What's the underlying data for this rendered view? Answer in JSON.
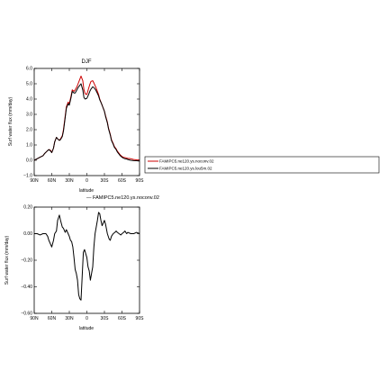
{
  "chart_data": [
    {
      "type": "line",
      "title": "DJF",
      "xlabel": "latitude",
      "ylabel": "Surf water flux (mm/day)",
      "xlim": [
        90,
        -90
      ],
      "ylim": [
        -1.0,
        6.0
      ],
      "x_ticks": [
        90,
        60,
        30,
        0,
        -30,
        -60,
        -90
      ],
      "x_tick_labels": [
        "90N",
        "60N",
        "30N",
        "0",
        "30S",
        "60S",
        "90S"
      ],
      "y_ticks": [
        -1.0,
        0.0,
        1.0,
        2.0,
        3.0,
        4.0,
        5.0,
        6.0
      ],
      "y_tick_labels": [
        "−1.0",
        "0.0",
        "1.0",
        "2.0",
        "3.0",
        "4.0",
        "5.0",
        "6.0"
      ],
      "legend_position": "right, outside plot",
      "series": [
        {
          "name": "FAMIPC5.ne120.ys.noconv.02",
          "color": "#cc0000",
          "x": [
            90,
            85,
            80,
            75,
            72,
            68,
            65,
            62,
            60,
            57,
            55,
            52,
            50,
            47,
            45,
            42,
            40,
            37,
            35,
            32,
            30,
            27,
            25,
            22,
            20,
            17,
            15,
            12,
            10,
            7,
            5,
            3,
            0,
            -3,
            -5,
            -7,
            -10,
            -12,
            -15,
            -17,
            -20,
            -22,
            -25,
            -27,
            -30,
            -32,
            -35,
            -37,
            -40,
            -42,
            -45,
            -47,
            -50,
            -52,
            -55,
            -57,
            -60,
            -62,
            -65,
            -68,
            -70,
            -72,
            -75,
            -80,
            -85,
            -90
          ],
          "y": [
            0.0,
            0.1,
            0.2,
            0.3,
            0.45,
            0.6,
            0.7,
            0.65,
            0.5,
            0.8,
            1.2,
            1.5,
            1.4,
            1.3,
            1.4,
            1.6,
            2.0,
            2.9,
            3.5,
            3.8,
            3.7,
            4.2,
            4.6,
            4.5,
            4.6,
            4.8,
            5.0,
            5.3,
            5.5,
            5.2,
            4.6,
            4.35,
            4.3,
            4.7,
            4.95,
            5.15,
            5.2,
            5.05,
            4.8,
            4.6,
            4.3,
            4.0,
            3.7,
            3.5,
            3.2,
            2.9,
            2.5,
            2.1,
            1.7,
            1.35,
            1.1,
            0.9,
            0.75,
            0.6,
            0.45,
            0.35,
            0.25,
            0.2,
            0.18,
            0.15,
            0.12,
            0.12,
            0.1,
            0.05,
            0.03,
            0.02
          ]
        },
        {
          "name": "FAMIPC5.ne120.ys.lou5m.02",
          "color": "#000000",
          "x": [
            90,
            85,
            80,
            75,
            72,
            68,
            65,
            62,
            60,
            57,
            55,
            52,
            50,
            47,
            45,
            42,
            40,
            37,
            35,
            32,
            30,
            27,
            25,
            22,
            20,
            17,
            15,
            12,
            10,
            7,
            5,
            3,
            0,
            -3,
            -5,
            -7,
            -10,
            -12,
            -15,
            -17,
            -20,
            -22,
            -25,
            -27,
            -30,
            -32,
            -35,
            -37,
            -40,
            -42,
            -45,
            -47,
            -50,
            -52,
            -55,
            -57,
            -60,
            -62,
            -65,
            -68,
            -70,
            -72,
            -75,
            -80,
            -85,
            -90
          ],
          "y": [
            0.0,
            0.1,
            0.2,
            0.3,
            0.45,
            0.6,
            0.7,
            0.6,
            0.5,
            0.8,
            1.2,
            1.5,
            1.4,
            1.3,
            1.35,
            1.55,
            1.9,
            2.8,
            3.4,
            3.7,
            3.6,
            4.1,
            4.5,
            4.4,
            4.4,
            4.6,
            4.75,
            4.9,
            5.0,
            4.6,
            4.1,
            4.0,
            4.05,
            4.3,
            4.5,
            4.65,
            4.8,
            4.75,
            4.6,
            4.45,
            4.2,
            3.95,
            3.7,
            3.5,
            3.2,
            2.85,
            2.45,
            2.05,
            1.65,
            1.3,
            1.05,
            0.85,
            0.7,
            0.55,
            0.4,
            0.3,
            0.2,
            0.15,
            0.1,
            0.08,
            0.05,
            0.03,
            0.0,
            -0.02,
            -0.03,
            -0.05
          ]
        }
      ]
    },
    {
      "type": "line",
      "title": "",
      "subtitle": "— FAMIPC5.ne120.ys.noconv.02",
      "xlabel": "latitude",
      "ylabel": "Surf water flux (mm/day)",
      "xlim": [
        90,
        -90
      ],
      "ylim": [
        -0.6,
        0.2
      ],
      "x_ticks": [
        90,
        60,
        30,
        0,
        -30,
        -60,
        -90
      ],
      "x_tick_labels": [
        "90N",
        "60N",
        "30N",
        "0",
        "30S",
        "60S",
        "90S"
      ],
      "y_ticks": [
        -0.6,
        -0.4,
        -0.2,
        0.0,
        0.2
      ],
      "y_tick_labels": [
        "−0.60",
        "−0.40",
        "−0.20",
        "0.00",
        "0.20"
      ],
      "series": [
        {
          "color": "#000000",
          "x": [
            90,
            85,
            80,
            75,
            70,
            67,
            65,
            62,
            60,
            57,
            55,
            52,
            50,
            47,
            45,
            42,
            40,
            37,
            35,
            32,
            30,
            28,
            26,
            24,
            22,
            20,
            18,
            16,
            14,
            12,
            10,
            8,
            6,
            4,
            2,
            0,
            -2,
            -4,
            -6,
            -8,
            -10,
            -12,
            -14,
            -16,
            -18,
            -20,
            -22,
            -24,
            -26,
            -28,
            -30,
            -32,
            -35,
            -38,
            -40,
            -42,
            -45,
            -48,
            -50,
            -52,
            -55,
            -58,
            -60,
            -63,
            -65,
            -68,
            -70,
            -75,
            -80,
            -85,
            -90
          ],
          "y": [
            0.0,
            0.0,
            -0.01,
            0.0,
            0.0,
            -0.02,
            -0.05,
            -0.08,
            -0.1,
            -0.05,
            0.0,
            0.02,
            0.1,
            0.14,
            0.1,
            0.05,
            0.04,
            0.01,
            0.03,
            0.0,
            -0.02,
            -0.05,
            -0.06,
            -0.1,
            -0.18,
            -0.27,
            -0.3,
            -0.35,
            -0.46,
            -0.49,
            -0.5,
            -0.32,
            -0.14,
            -0.12,
            -0.15,
            -0.18,
            -0.25,
            -0.28,
            -0.35,
            -0.3,
            -0.25,
            -0.1,
            0.0,
            0.05,
            0.1,
            0.16,
            0.15,
            0.1,
            0.06,
            0.08,
            0.1,
            0.07,
            0.0,
            -0.04,
            -0.05,
            -0.02,
            0.0,
            0.01,
            0.02,
            0.01,
            0.0,
            -0.01,
            0.0,
            0.01,
            0.02,
            0.0,
            0.01,
            0.0,
            0.0,
            0.01,
            0.0
          ]
        }
      ]
    }
  ]
}
